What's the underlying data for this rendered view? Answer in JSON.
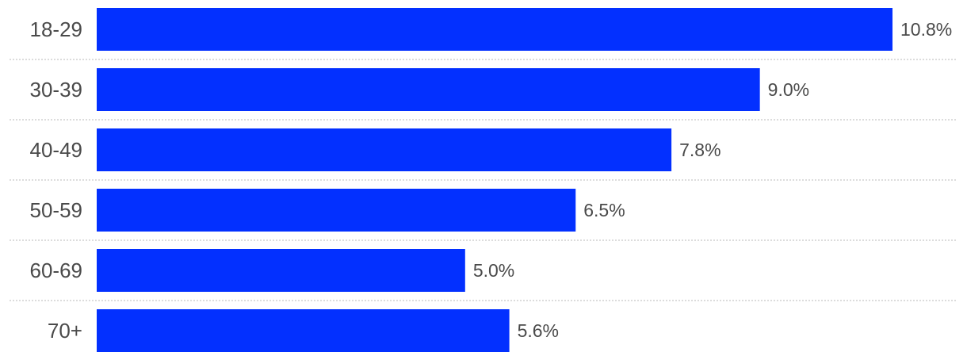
{
  "chart_data": {
    "type": "bar",
    "orientation": "horizontal",
    "categories": [
      "18-29",
      "30-39",
      "40-49",
      "50-59",
      "60-69",
      "70+"
    ],
    "values": [
      10.8,
      9.0,
      7.8,
      6.5,
      5.0,
      5.6
    ],
    "value_labels": [
      "10.8%",
      "9.0%",
      "7.8%",
      "6.5%",
      "5.0%",
      "5.6%"
    ],
    "bar_color": "#0330ff",
    "xlim": [
      0,
      10.8
    ],
    "grid": false,
    "row_separators": "dotted"
  }
}
